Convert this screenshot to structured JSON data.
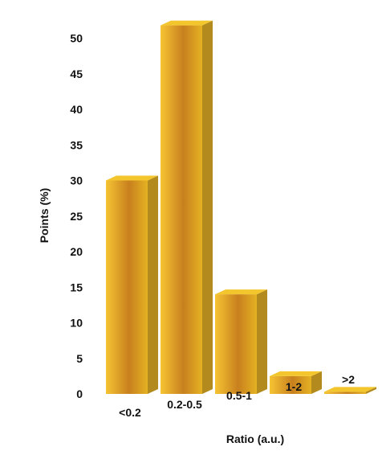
{
  "chart_data": {
    "type": "bar",
    "title": "",
    "xlabel": "Ratio (a.u.)",
    "ylabel": "Points (%)",
    "categories": [
      "<0.2",
      "0.2-0.5",
      "0.5-1",
      "1-2",
      ">2"
    ],
    "values": [
      30,
      51.8,
      14,
      2.5,
      0.3
    ],
    "ylim": [
      0,
      50
    ],
    "yticks": [
      0,
      5,
      10,
      15,
      20,
      25,
      30,
      35,
      40,
      45,
      50
    ],
    "grid": false,
    "style": "3d",
    "colors": {
      "front_light": "#f6c433",
      "front_mid": "#e4b222",
      "front_dark": "#c8801e",
      "side": "#b38a1e",
      "top": "#f3c62d"
    }
  }
}
